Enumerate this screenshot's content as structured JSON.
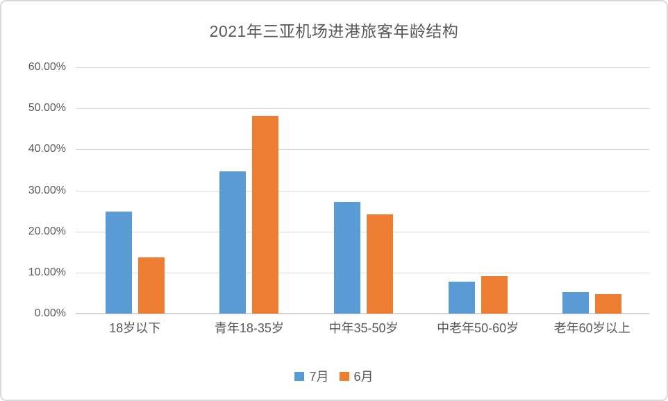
{
  "title": "2021年三亚机场进港旅客年龄结构",
  "colors": {
    "series_july": "#5B9BD5",
    "series_june": "#ED7D31",
    "gridline": "#D9D9D9",
    "baseline": "#D4D4D4",
    "text": "#595959",
    "card_border": "#D9D9D9",
    "background": "#FFFFFF"
  },
  "chart_data": {
    "type": "bar",
    "title": "2021年三亚机场进港旅客年龄结构",
    "categories": [
      "18岁以下",
      "青年18-35岁",
      "中年35-50岁",
      "中老年50-60岁",
      "老年60岁以上"
    ],
    "series": [
      {
        "name": "7月",
        "color": "#5B9BD5",
        "values": [
          24.8,
          34.7,
          27.2,
          7.8,
          5.2
        ]
      },
      {
        "name": "6月",
        "color": "#ED7D31",
        "values": [
          13.7,
          48.1,
          24.1,
          9.2,
          4.7
        ]
      }
    ],
    "xlabel": "",
    "ylabel": "",
    "ylim": [
      0,
      60
    ],
    "ytick_step": 10,
    "ytick_labels": [
      "0.00%",
      "10.00%",
      "20.00%",
      "30.00%",
      "40.00%",
      "50.00%",
      "60.00%"
    ],
    "value_format": "percent",
    "grid": true,
    "legend_position": "bottom"
  }
}
